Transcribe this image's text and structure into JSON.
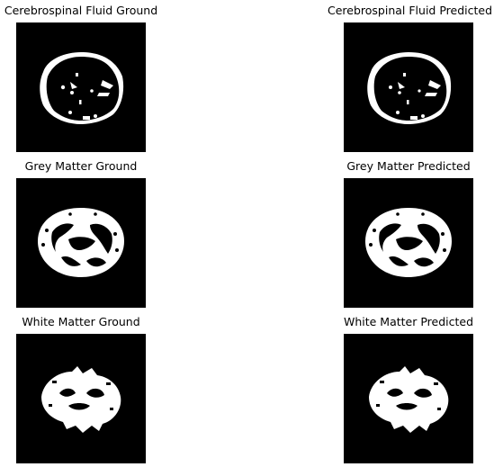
{
  "panels": [
    {
      "title": "Cerebrospinal Fluid Ground",
      "tissue": "csf"
    },
    {
      "title": "Cerebrospinal Fluid Predicted",
      "tissue": "csf"
    },
    {
      "title": "Grey Matter Ground",
      "tissue": "gm"
    },
    {
      "title": "Grey Matter Predicted",
      "tissue": "gm"
    },
    {
      "title": "White Matter Ground",
      "tissue": "wm"
    },
    {
      "title": "White Matter Predicted",
      "tissue": "wm"
    }
  ],
  "colors": {
    "background": "#000000",
    "mask": "#ffffff"
  }
}
